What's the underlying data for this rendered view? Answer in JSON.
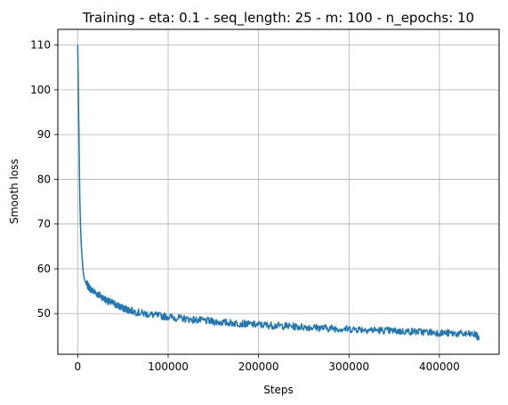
{
  "chart_data": {
    "type": "line",
    "title": "Training - eta: 0.1 - seq_length: 25 - m: 100 - n_epochs: 10",
    "xlabel": "Steps",
    "ylabel": "Smooth loss",
    "xlim": [
      -22000,
      466000
    ],
    "ylim": [
      40.9,
      113.5
    ],
    "xticks": [
      0,
      100000,
      200000,
      300000,
      400000
    ],
    "xtick_labels": [
      "0",
      "100000",
      "200000",
      "300000",
      "400000"
    ],
    "yticks": [
      50,
      60,
      70,
      80,
      90,
      100,
      110
    ],
    "ytick_labels": [
      "50",
      "60",
      "70",
      "80",
      "90",
      "100",
      "110"
    ],
    "grid": true,
    "line_color": "#1f77b4",
    "series": [
      {
        "x": [
          0,
          500,
          1000,
          1500,
          2000,
          2500,
          3000,
          4000,
          5000,
          6000,
          7000,
          8000,
          10000,
          12000,
          15000,
          20000,
          25000,
          30000,
          35000,
          40000,
          45000,
          50000,
          55000,
          60000,
          70000,
          80000,
          90000,
          100000,
          110000,
          120000,
          130000,
          140000,
          150000,
          160000,
          170000,
          180000,
          190000,
          200000,
          210000,
          220000,
          230000,
          240000,
          250000,
          260000,
          270000,
          280000,
          290000,
          300000,
          310000,
          320000,
          330000,
          340000,
          350000,
          360000,
          370000,
          380000,
          390000,
          400000,
          410000,
          420000,
          430000,
          440000,
          444000
        ],
        "y": [
          110,
          103,
          95,
          88,
          80,
          74,
          70,
          65,
          62,
          59.5,
          58,
          57.2,
          56.6,
          56,
          55.3,
          54.6,
          54,
          53.2,
          52.6,
          52.2,
          51.7,
          51.2,
          50.9,
          50.6,
          50.1,
          49.8,
          49.5,
          49.3,
          49,
          48.8,
          48.6,
          48.4,
          48.2,
          48,
          47.9,
          47.8,
          47.6,
          47.5,
          47.4,
          47.3,
          47.2,
          47.1,
          47,
          46.9,
          46.8,
          46.7,
          46.6,
          46.5,
          46.5,
          46.4,
          46.3,
          46.2,
          46.1,
          46,
          46,
          45.9,
          45.8,
          45.7,
          45.6,
          45.5,
          45.4,
          45.3,
          44.2
        ]
      }
    ]
  }
}
